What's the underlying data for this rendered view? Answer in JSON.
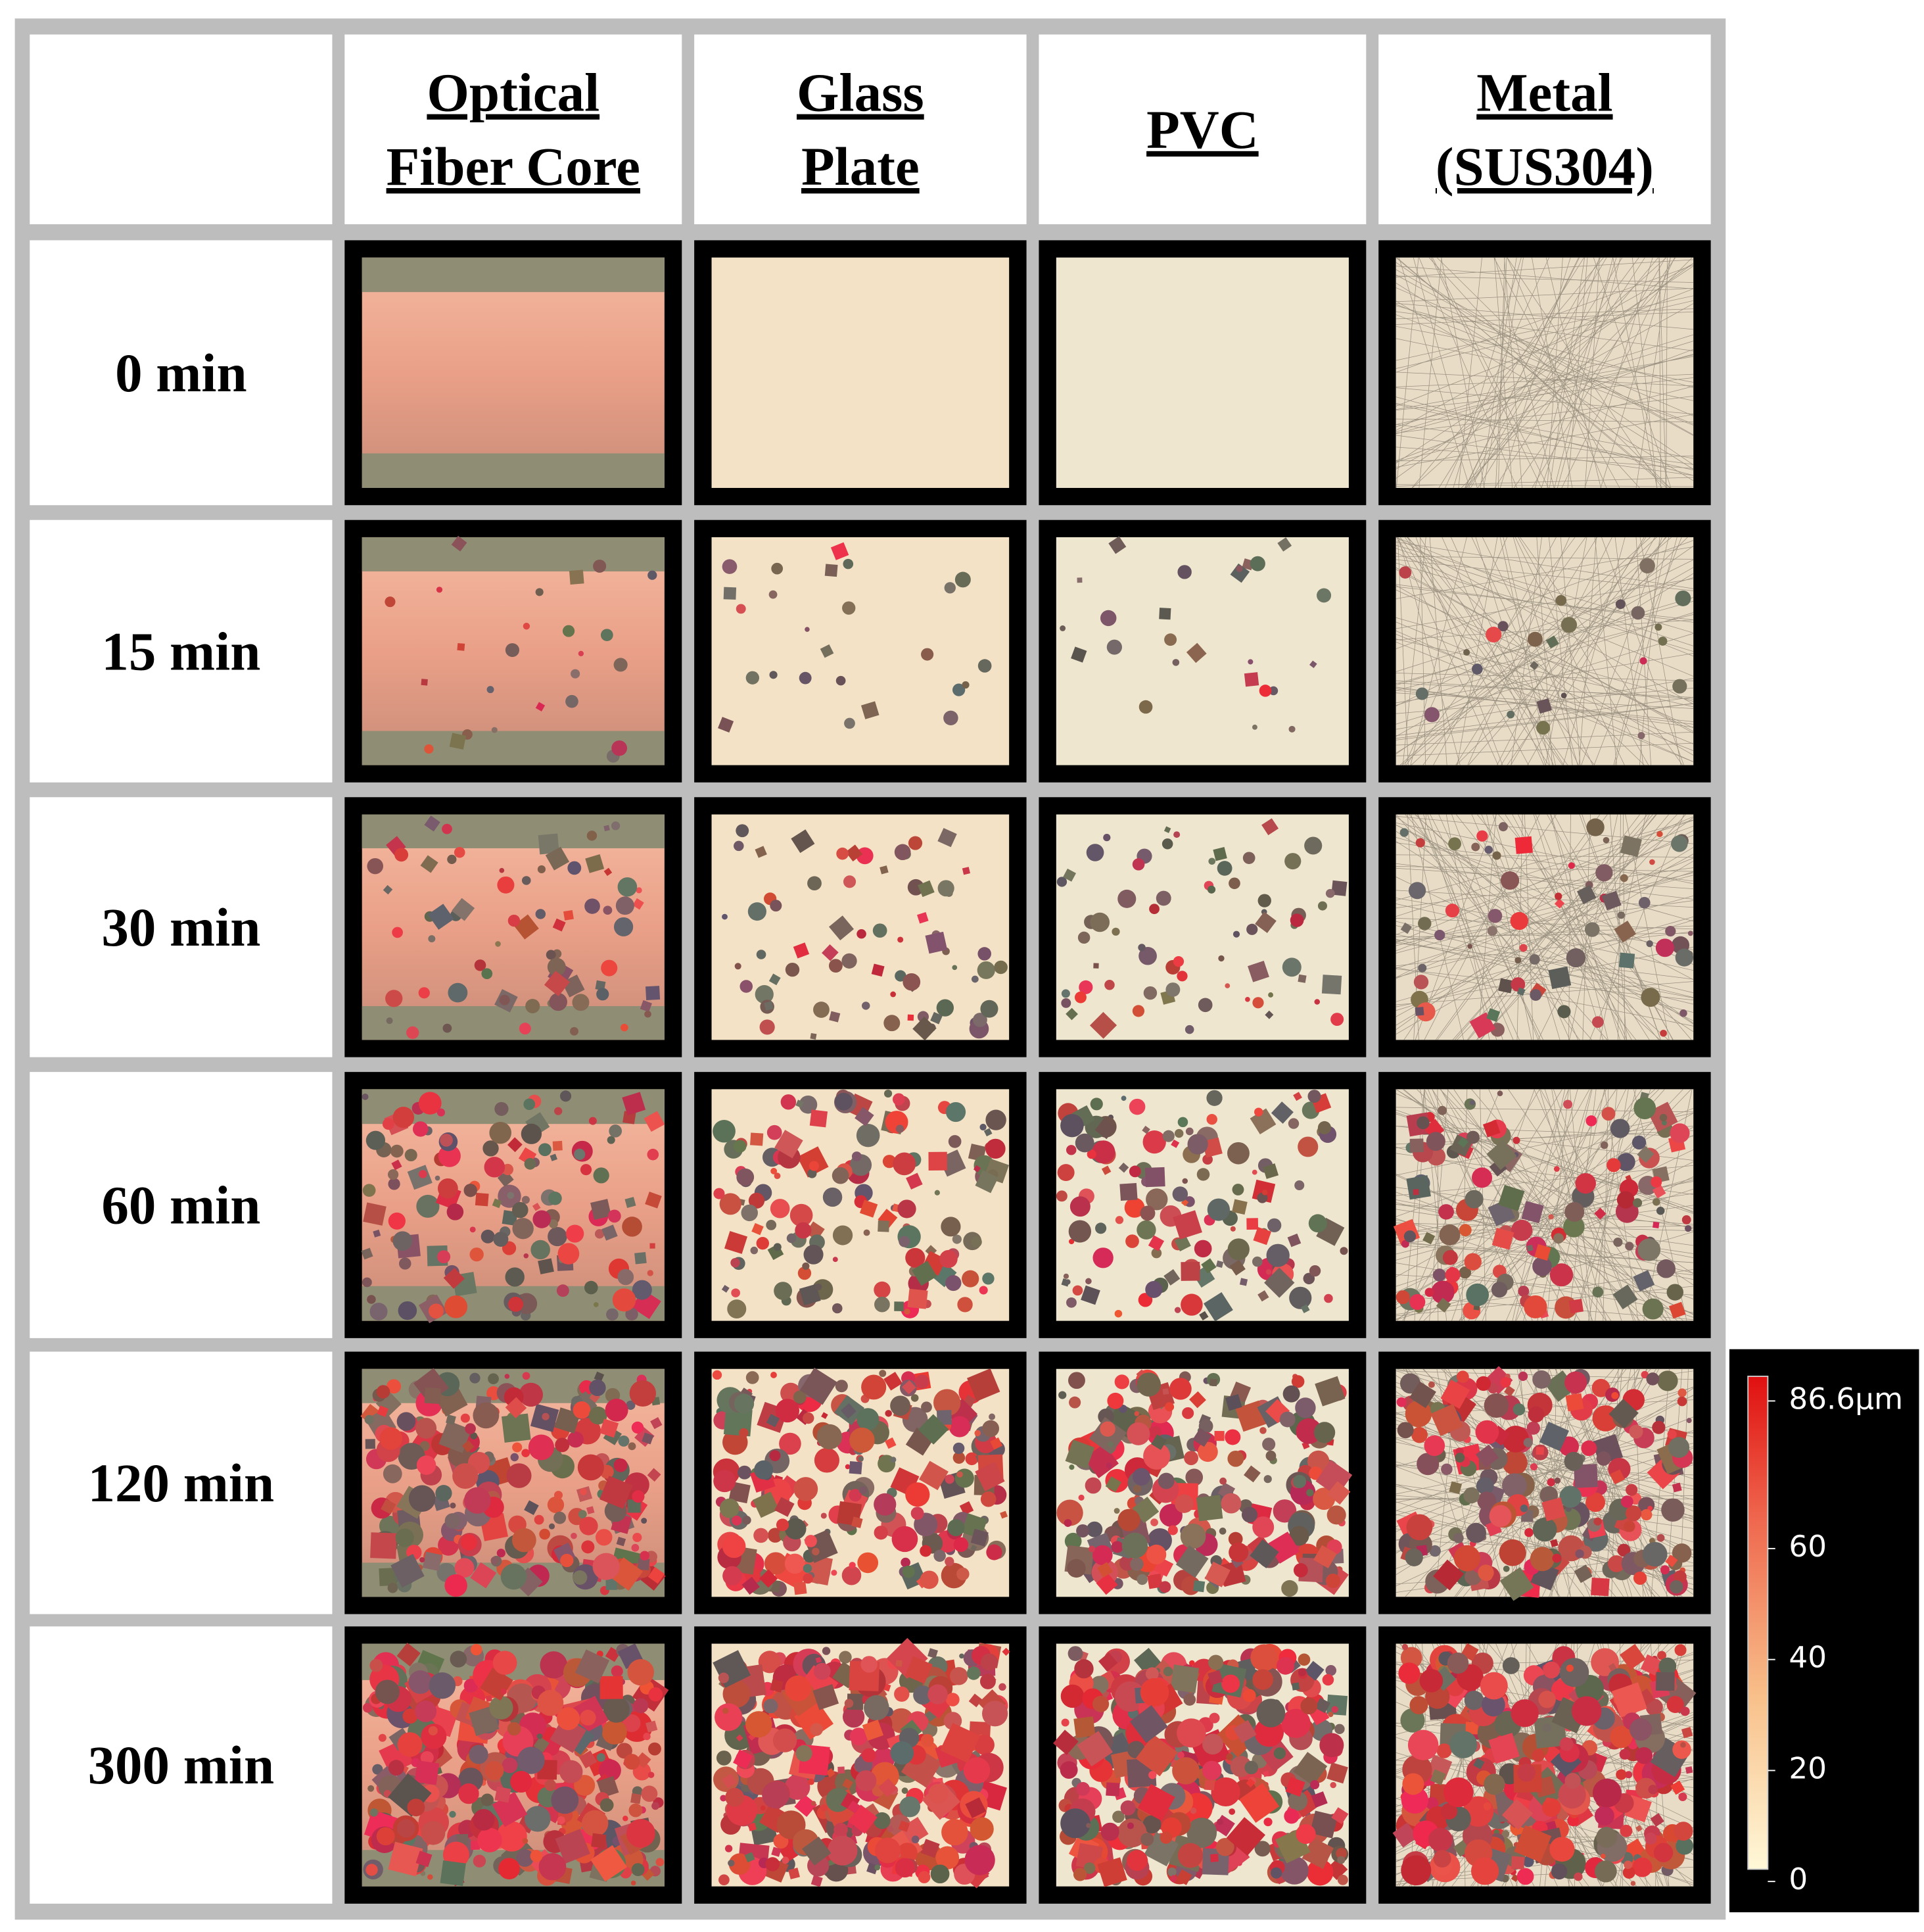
{
  "columns": [
    [
      "Optical",
      "Fiber Core"
    ],
    [
      "Glass",
      "Plate"
    ],
    [
      "PVC"
    ],
    [
      "Metal",
      "(SUS304)"
    ]
  ],
  "rows": [
    "0 min",
    "15 min",
    "30 min",
    "60 min",
    "120 min",
    "300 min"
  ],
  "colorbar": {
    "ticks": [
      {
        "value": 86.6,
        "label": "86.6µm"
      },
      60,
      40,
      20,
      0
    ],
    "range": [
      0,
      86.6
    ]
  }
}
